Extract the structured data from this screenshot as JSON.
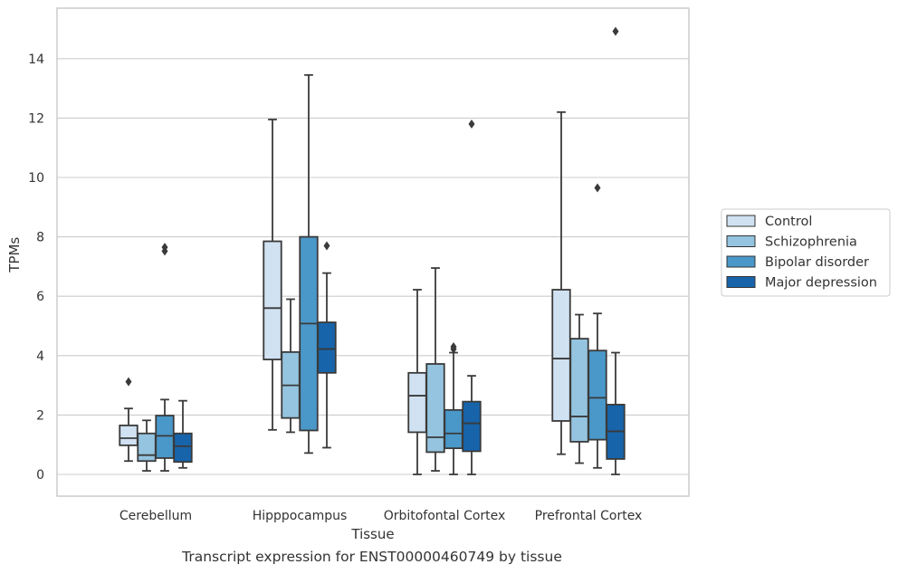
{
  "caption": "Transcript expression for ENST00000460749 by tissue",
  "chart_data": {
    "type": "boxplot",
    "xlabel": "Tissue",
    "ylabel": "TPMs",
    "categories": [
      "Cerebellum",
      "Hipppocampus",
      "Orbitofontal Cortex",
      "Prefrontal Cortex"
    ],
    "ylim": [
      -0.7,
      15.5
    ],
    "yticks": [
      0,
      2,
      4,
      6,
      8,
      10,
      12,
      14
    ],
    "grid": "horizontal",
    "legend_position": "right",
    "series": [
      {
        "name": "Control",
        "color": "#d0e1f2",
        "boxes": [
          {
            "whislo": 0.45,
            "q1": 0.98,
            "median": 1.22,
            "q3": 1.65,
            "whishi": 2.22,
            "fliers": [
              3.12
            ]
          },
          {
            "whislo": 1.5,
            "q1": 3.87,
            "median": 5.6,
            "q3": 7.85,
            "whishi": 11.95,
            "fliers": []
          },
          {
            "whislo": 0.0,
            "q1": 1.42,
            "median": 2.65,
            "q3": 3.42,
            "whishi": 6.22,
            "fliers": []
          },
          {
            "whislo": 0.68,
            "q1": 1.8,
            "median": 3.9,
            "q3": 6.22,
            "whishi": 12.2,
            "fliers": []
          }
        ]
      },
      {
        "name": "Schizophrenia",
        "color": "#94c4df",
        "boxes": [
          {
            "whislo": 0.12,
            "q1": 0.45,
            "median": 0.65,
            "q3": 1.38,
            "whishi": 1.82,
            "fliers": []
          },
          {
            "whislo": 1.42,
            "q1": 1.9,
            "median": 3.0,
            "q3": 4.12,
            "whishi": 5.9,
            "fliers": []
          },
          {
            "whislo": 0.12,
            "q1": 0.75,
            "median": 1.25,
            "q3": 3.72,
            "whishi": 6.95,
            "fliers": []
          },
          {
            "whislo": 0.38,
            "q1": 1.1,
            "median": 1.95,
            "q3": 4.57,
            "whishi": 5.38,
            "fliers": []
          }
        ]
      },
      {
        "name": "Bipolar disorder",
        "color": "#4a98c9",
        "boxes": [
          {
            "whislo": 0.12,
            "q1": 0.55,
            "median": 1.3,
            "q3": 1.98,
            "whishi": 2.52,
            "fliers": [
              7.52,
              7.65
            ]
          },
          {
            "whislo": 0.72,
            "q1": 1.48,
            "median": 5.08,
            "q3": 8.0,
            "whishi": 13.45,
            "fliers": []
          },
          {
            "whislo": 0.0,
            "q1": 0.88,
            "median": 1.38,
            "q3": 2.17,
            "whishi": 4.1,
            "fliers": [
              4.22,
              4.3
            ]
          },
          {
            "whislo": 0.22,
            "q1": 1.17,
            "median": 2.58,
            "q3": 4.17,
            "whishi": 5.42,
            "fliers": [
              9.65
            ]
          }
        ]
      },
      {
        "name": "Major depression",
        "color": "#1764ab",
        "boxes": [
          {
            "whislo": 0.22,
            "q1": 0.42,
            "median": 0.95,
            "q3": 1.38,
            "whishi": 2.48,
            "fliers": []
          },
          {
            "whislo": 0.9,
            "q1": 3.42,
            "median": 4.22,
            "q3": 5.12,
            "whishi": 6.78,
            "fliers": [
              7.7
            ]
          },
          {
            "whislo": 0.0,
            "q1": 0.78,
            "median": 1.72,
            "q3": 2.45,
            "whishi": 3.32,
            "fliers": [
              11.8
            ]
          },
          {
            "whislo": 0.0,
            "q1": 0.52,
            "median": 1.45,
            "q3": 2.35,
            "whishi": 4.1,
            "fliers": [
              14.92
            ]
          }
        ]
      }
    ]
  }
}
